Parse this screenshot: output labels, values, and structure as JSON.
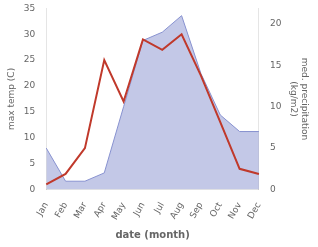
{
  "chart_data": {
    "type": "line",
    "xlabel": "date (month)",
    "ylabel": "max temp (C)",
    "y2label": "med. precipitation\n(kg/m2)",
    "categories": [
      "Jan",
      "Feb",
      "Mar",
      "Apr",
      "May",
      "Jun",
      "Jul",
      "Aug",
      "Sep",
      "Oct",
      "Nov",
      "Dec"
    ],
    "series": [
      {
        "type": "area",
        "axis": "y2",
        "color": "#8892d0",
        "values": [
          5,
          1,
          1,
          2,
          10,
          18,
          19,
          21,
          14,
          9,
          7,
          7
        ]
      },
      {
        "type": "line",
        "color": "#c0392b",
        "values": [
          1,
          3,
          8,
          25,
          17,
          29,
          27,
          30,
          22,
          13,
          4,
          3
        ]
      }
    ],
    "ylim": [
      0,
      35
    ],
    "yticks": [
      0,
      5,
      10,
      15,
      20,
      25,
      30,
      35
    ],
    "y2lim": [
      0,
      21.875
    ],
    "y2ticks": [
      0,
      5,
      10,
      15,
      20
    ],
    "grid": false
  }
}
